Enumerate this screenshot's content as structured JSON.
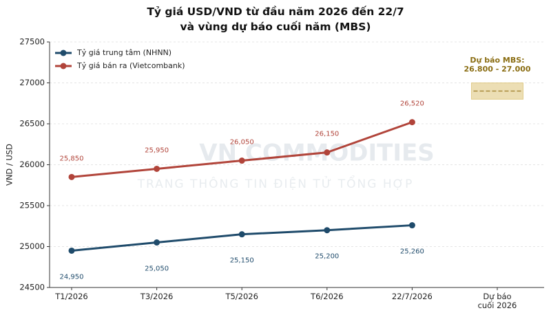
{
  "chart_data": {
    "type": "line",
    "title": "Tỷ giá USD/VND từ đầu năm 2026 đến 22/7\nvà vùng dự báo cuối năm (MBS)",
    "ylabel": "VND / USD",
    "categories": [
      "T1/2026",
      "T3/2026",
      "T5/2026",
      "T6/2026",
      "22/7/2026",
      "Dự báo\ncuối 2026"
    ],
    "series": [
      {
        "name": "Tỷ giá trung tâm (NHNN)",
        "color": "#1f4b6b",
        "values": [
          24950,
          25050,
          25150,
          25200,
          25260,
          null
        ],
        "value_labels": [
          "24,950",
          "25,050",
          "25,150",
          "25,200",
          "25,260",
          null
        ]
      },
      {
        "name": "Tỷ giá bán ra (Vietcombank)",
        "color": "#b1443a",
        "values": [
          25850,
          25950,
          26050,
          26150,
          26520,
          null
        ],
        "value_labels": [
          "25,850",
          "25,950",
          "26,050",
          "26,150",
          "26,520",
          null
        ]
      }
    ],
    "ylim": [
      24500,
      27500
    ],
    "yticks": [
      24500,
      25000,
      25500,
      26000,
      26500,
      27000,
      27500
    ],
    "grid": true,
    "legend": "upper left",
    "forecast_band": {
      "low": 26800,
      "high": 27000,
      "color": "#d9bd6a"
    },
    "annotation": "Dự báo MBS:\n26.800 - 27.000",
    "watermark": [
      "VN COMMODITIES",
      "TRANG THÔNG TIN ĐIỆN TỬ TỔNG HỢP"
    ]
  }
}
